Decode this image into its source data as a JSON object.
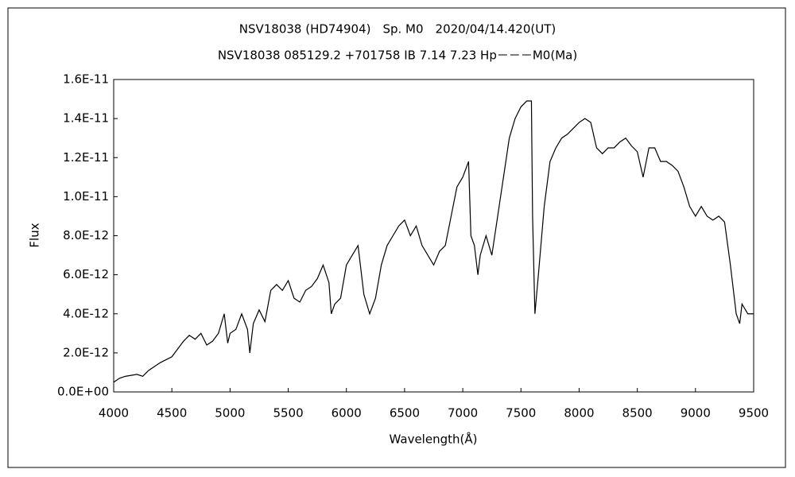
{
  "chart_data": {
    "type": "line",
    "title": "NSV18038 (HD74904)　Sp. M0　2020/04/14.420(UT)",
    "subtitle": "NSV18038 085129.2 +701758 IB 7.14 7.23 Hp－－－M0(Ma)",
    "x_label": "Wavelength(Å)",
    "y_label": "Flux",
    "xlim": [
      4000,
      9500
    ],
    "xticks": [
      4000,
      4500,
      5000,
      5500,
      6000,
      6500,
      7000,
      7500,
      8000,
      8500,
      9000,
      9500
    ],
    "ylim": [
      0,
      1.6e-11
    ],
    "yticks": [
      {
        "value": 0,
        "label": "0.0E+00"
      },
      {
        "value": 2e-12,
        "label": "2.0E-12"
      },
      {
        "value": 4e-12,
        "label": "4.0E-12"
      },
      {
        "value": 6e-12,
        "label": "6.0E-12"
      },
      {
        "value": 8e-12,
        "label": "8.0E-12"
      },
      {
        "value": 1e-11,
        "label": "1.0E-11"
      },
      {
        "value": 1.2e-11,
        "label": "1.2E-11"
      },
      {
        "value": 1.4e-11,
        "label": "1.4E-11"
      },
      {
        "value": 1.6e-11,
        "label": "1.6E-11"
      }
    ],
    "grid": false,
    "x": [
      4000,
      4050,
      4100,
      4200,
      4250,
      4300,
      4400,
      4500,
      4550,
      4600,
      4650,
      4700,
      4750,
      4800,
      4850,
      4900,
      4950,
      4980,
      5000,
      5050,
      5100,
      5150,
      5170,
      5200,
      5250,
      5300,
      5350,
      5400,
      5450,
      5500,
      5550,
      5600,
      5650,
      5700,
      5750,
      5800,
      5850,
      5870,
      5900,
      5950,
      6000,
      6050,
      6100,
      6150,
      6200,
      6250,
      6300,
      6350,
      6400,
      6450,
      6500,
      6550,
      6600,
      6650,
      6700,
      6750,
      6800,
      6850,
      6900,
      6950,
      7000,
      7050,
      7070,
      7100,
      7130,
      7150,
      7200,
      7250,
      7300,
      7350,
      7400,
      7450,
      7500,
      7550,
      7590,
      7600,
      7620,
      7650,
      7700,
      7750,
      7800,
      7850,
      7900,
      7950,
      8000,
      8050,
      8100,
      8150,
      8200,
      8250,
      8300,
      8350,
      8400,
      8450,
      8500,
      8550,
      8600,
      8650,
      8700,
      8750,
      8800,
      8850,
      8900,
      8950,
      9000,
      9050,
      9100,
      9150,
      9200,
      9250,
      9300,
      9350,
      9380,
      9400,
      9450,
      9500
    ],
    "series": [
      {
        "name": "Flux",
        "color": "#000000",
        "values": [
          5e-13,
          7e-13,
          8e-13,
          9e-13,
          8e-13,
          1.1e-12,
          1.5e-12,
          1.8e-12,
          2.2e-12,
          2.6e-12,
          2.9e-12,
          2.7e-12,
          3e-12,
          2.4e-12,
          2.6e-12,
          3e-12,
          4e-12,
          2.5e-12,
          3e-12,
          3.2e-12,
          4e-12,
          3.2e-12,
          2e-12,
          3.5e-12,
          4.2e-12,
          3.6e-12,
          5.2e-12,
          5.5e-12,
          5.2e-12,
          5.7e-12,
          4.8e-12,
          4.6e-12,
          5.2e-12,
          5.4e-12,
          5.8e-12,
          6.5e-12,
          5.6e-12,
          4e-12,
          4.5e-12,
          4.8e-12,
          6.5e-12,
          7e-12,
          7.5e-12,
          5e-12,
          4e-12,
          4.8e-12,
          6.5e-12,
          7.5e-12,
          8e-12,
          8.5e-12,
          8.8e-12,
          8e-12,
          8.5e-12,
          7.5e-12,
          7e-12,
          6.5e-12,
          7.2e-12,
          7.5e-12,
          9e-12,
          1.05e-11,
          1.1e-11,
          1.18e-11,
          8e-12,
          7.5e-12,
          6e-12,
          7e-12,
          8e-12,
          7e-12,
          9e-12,
          1.1e-11,
          1.3e-11,
          1.4e-11,
          1.46e-11,
          1.49e-11,
          1.49e-11,
          9e-12,
          4e-12,
          6e-12,
          9.5e-12,
          1.18e-11,
          1.25e-11,
          1.3e-11,
          1.32e-11,
          1.35e-11,
          1.38e-11,
          1.4e-11,
          1.38e-11,
          1.25e-11,
          1.22e-11,
          1.25e-11,
          1.25e-11,
          1.28e-11,
          1.3e-11,
          1.26e-11,
          1.23e-11,
          1.1e-11,
          1.25e-11,
          1.25e-11,
          1.18e-11,
          1.18e-11,
          1.16e-11,
          1.13e-11,
          1.05e-11,
          9.5e-12,
          9e-12,
          9.5e-12,
          9e-12,
          8.8e-12,
          9e-12,
          8.7e-12,
          6.5e-12,
          4e-12,
          3.5e-12,
          4.5e-12,
          4e-12,
          4e-12
        ]
      }
    ]
  }
}
